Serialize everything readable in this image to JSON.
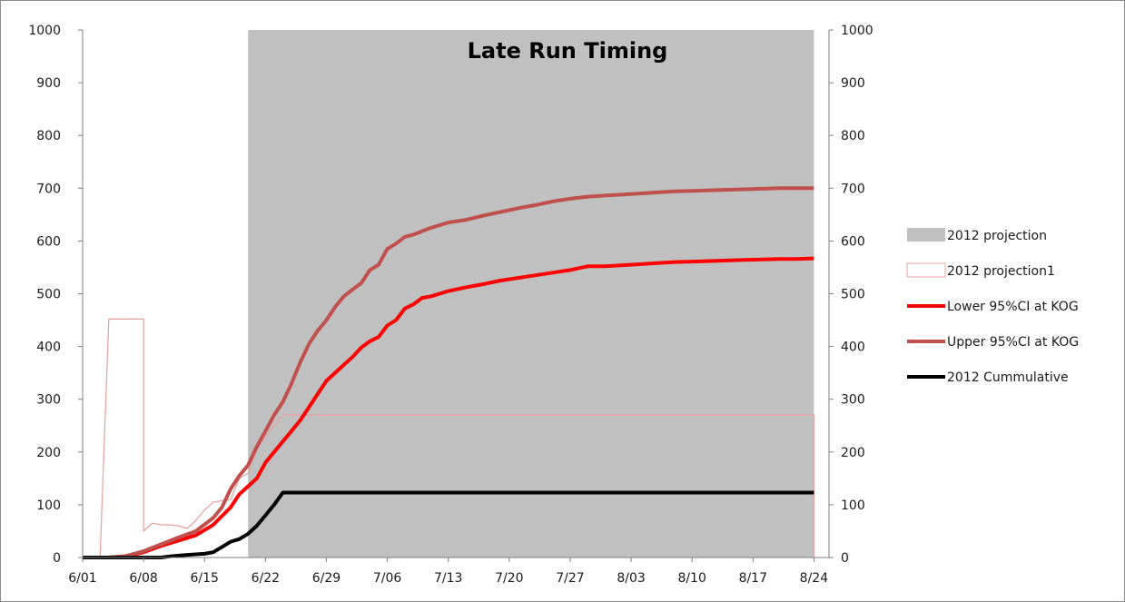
{
  "chart_data": {
    "type": "line",
    "title": "Late Run Timing",
    "xlabel": "",
    "ylabel": "",
    "ylim": [
      0,
      1000
    ],
    "y_ticks": [
      "0",
      "100",
      "200",
      "300",
      "400",
      "500",
      "600",
      "700",
      "800",
      "900",
      "1000"
    ],
    "x_ticks": [
      "6/01",
      "6/08",
      "6/15",
      "6/22",
      "6/29",
      "7/06",
      "7/13",
      "7/20",
      "7/27",
      "8/03",
      "8/10",
      "8/17",
      "8/24"
    ],
    "x_range_days": [
      0,
      85
    ],
    "secondary_y_axis": true,
    "legend_position": "right",
    "series": [
      {
        "name": "2012 projection",
        "style": "area",
        "color": "#c0c0c0",
        "points": [
          [
            19,
            0
          ],
          [
            19,
            1000
          ],
          [
            84,
            1000
          ],
          [
            84,
            0
          ]
        ]
      },
      {
        "name": "2012 projection1",
        "style": "thin-line",
        "color": "#e8a0a0",
        "points": [
          [
            0,
            0
          ],
          [
            2,
            0
          ],
          [
            3,
            452
          ],
          [
            6,
            452
          ],
          [
            7,
            452
          ],
          [
            7,
            50
          ],
          [
            8,
            65
          ],
          [
            9,
            62
          ],
          [
            10,
            62
          ],
          [
            11,
            60
          ],
          [
            12,
            55
          ],
          [
            13,
            70
          ],
          [
            14,
            90
          ],
          [
            15,
            105
          ],
          [
            17,
            110
          ],
          [
            18,
            150
          ],
          [
            19,
            160
          ],
          [
            20,
            205
          ],
          [
            21,
            230
          ],
          [
            22,
            250
          ],
          [
            23,
            270
          ],
          [
            84,
            270
          ],
          [
            84,
            0
          ]
        ]
      },
      {
        "name": "Lower 95%CI at KOG",
        "style": "thick-line",
        "color": "#ff0000",
        "points": [
          [
            0,
            0
          ],
          [
            3,
            0
          ],
          [
            5,
            2
          ],
          [
            7,
            10
          ],
          [
            9,
            22
          ],
          [
            11,
            32
          ],
          [
            13,
            42
          ],
          [
            15,
            62
          ],
          [
            17,
            95
          ],
          [
            18,
            120
          ],
          [
            19,
            135
          ],
          [
            20,
            150
          ],
          [
            21,
            180
          ],
          [
            22,
            200
          ],
          [
            23,
            220
          ],
          [
            24,
            240
          ],
          [
            25,
            260
          ],
          [
            26,
            285
          ],
          [
            27,
            310
          ],
          [
            28,
            335
          ],
          [
            29,
            350
          ],
          [
            30,
            365
          ],
          [
            31,
            380
          ],
          [
            32,
            398
          ],
          [
            33,
            410
          ],
          [
            34,
            418
          ],
          [
            35,
            440
          ],
          [
            36,
            450
          ],
          [
            37,
            472
          ],
          [
            38,
            480
          ],
          [
            39,
            492
          ],
          [
            40,
            495
          ],
          [
            42,
            505
          ],
          [
            44,
            512
          ],
          [
            46,
            518
          ],
          [
            48,
            525
          ],
          [
            50,
            530
          ],
          [
            52,
            535
          ],
          [
            54,
            540
          ],
          [
            56,
            545
          ],
          [
            58,
            552
          ],
          [
            60,
            552
          ],
          [
            62,
            554
          ],
          [
            64,
            556
          ],
          [
            66,
            558
          ],
          [
            68,
            560
          ],
          [
            70,
            561
          ],
          [
            72,
            562
          ],
          [
            74,
            563
          ],
          [
            76,
            564
          ],
          [
            78,
            565
          ],
          [
            80,
            566
          ],
          [
            82,
            566
          ],
          [
            84,
            567
          ]
        ]
      },
      {
        "name": "Upper 95%CI at KOG",
        "style": "thick-line",
        "color": "#c0504d",
        "points": [
          [
            0,
            0
          ],
          [
            3,
            0
          ],
          [
            5,
            3
          ],
          [
            7,
            12
          ],
          [
            9,
            25
          ],
          [
            11,
            38
          ],
          [
            13,
            50
          ],
          [
            15,
            75
          ],
          [
            16,
            95
          ],
          [
            17,
            130
          ],
          [
            18,
            155
          ],
          [
            19,
            175
          ],
          [
            20,
            210
          ],
          [
            21,
            240
          ],
          [
            22,
            270
          ],
          [
            23,
            295
          ],
          [
            24,
            330
          ],
          [
            25,
            370
          ],
          [
            26,
            405
          ],
          [
            27,
            430
          ],
          [
            28,
            450
          ],
          [
            29,
            475
          ],
          [
            30,
            495
          ],
          [
            31,
            508
          ],
          [
            32,
            520
          ],
          [
            33,
            545
          ],
          [
            34,
            555
          ],
          [
            35,
            585
          ],
          [
            36,
            595
          ],
          [
            37,
            608
          ],
          [
            38,
            612
          ],
          [
            40,
            625
          ],
          [
            42,
            635
          ],
          [
            44,
            640
          ],
          [
            46,
            648
          ],
          [
            48,
            655
          ],
          [
            50,
            662
          ],
          [
            52,
            668
          ],
          [
            54,
            675
          ],
          [
            56,
            680
          ],
          [
            58,
            684
          ],
          [
            60,
            686
          ],
          [
            62,
            688
          ],
          [
            64,
            690
          ],
          [
            66,
            692
          ],
          [
            68,
            694
          ],
          [
            70,
            695
          ],
          [
            72,
            696
          ],
          [
            74,
            697
          ],
          [
            76,
            698
          ],
          [
            78,
            699
          ],
          [
            80,
            700
          ],
          [
            84,
            700
          ]
        ]
      },
      {
        "name": "2012 Cummulative",
        "style": "thick-line",
        "color": "#000000",
        "points": [
          [
            0,
            0
          ],
          [
            9,
            0
          ],
          [
            10,
            2
          ],
          [
            12,
            5
          ],
          [
            14,
            7
          ],
          [
            15,
            10
          ],
          [
            16,
            20
          ],
          [
            17,
            30
          ],
          [
            18,
            35
          ],
          [
            19,
            45
          ],
          [
            20,
            60
          ],
          [
            21,
            80
          ],
          [
            22,
            100
          ],
          [
            23,
            123
          ],
          [
            84,
            123
          ]
        ]
      }
    ]
  }
}
